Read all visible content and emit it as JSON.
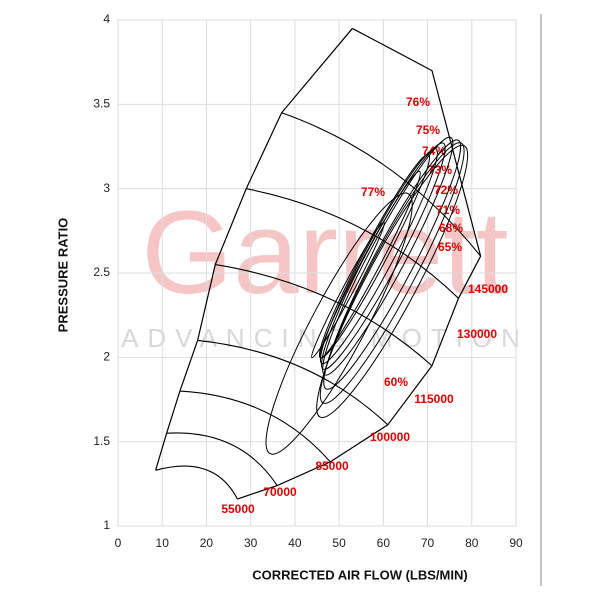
{
  "chart_data": {
    "type": "compressor-map",
    "xlabel": "CORRECTED AIR FLOW (LBS/MIN)",
    "ylabel": "PRESSURE RATIO",
    "watermark": "Garrett",
    "watermark_tagline": "ADVANCING MOTION",
    "xlim": [
      0,
      90
    ],
    "xticks": [
      0,
      10,
      20,
      30,
      40,
      50,
      60,
      70,
      80,
      90
    ],
    "ylim": [
      1,
      4
    ],
    "yticks": [
      1,
      1.5,
      2,
      2.5,
      3,
      3.5,
      4
    ],
    "grid": true,
    "speed_lines": {
      "values": [
        55000,
        70000,
        85000,
        100000,
        115000,
        130000,
        145000
      ]
    },
    "efficiency_islands": {
      "values": [
        76,
        75,
        74,
        73,
        72,
        71,
        68,
        65,
        77,
        60
      ],
      "value_labels": [
        "76%",
        "75%",
        "74%",
        "73%",
        "72%",
        "71%",
        "68%",
        "65%",
        "77%",
        "60%"
      ]
    }
  }
}
